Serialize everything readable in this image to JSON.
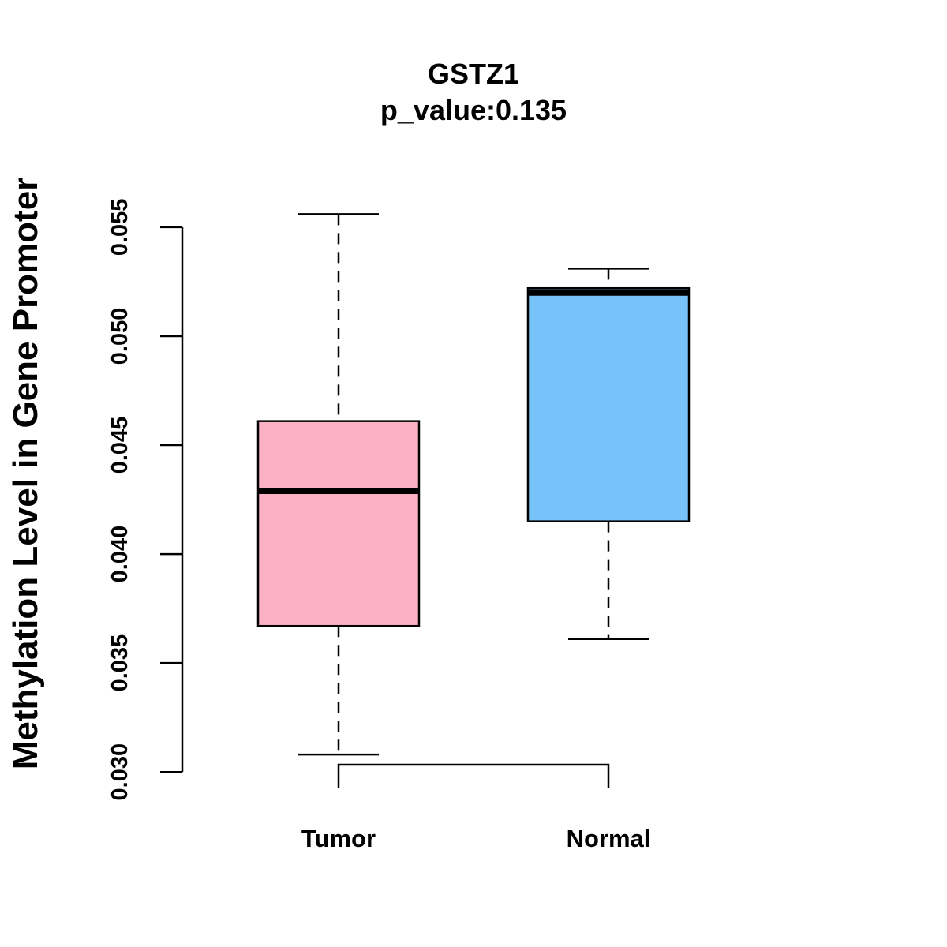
{
  "chart_data": {
    "type": "box",
    "title": "GSTZ1",
    "subtitle": "p_value:0.135",
    "xlabel": "",
    "ylabel": "Methylation Level in Gene Promoter",
    "ylim": [
      0.0295,
      0.0563
    ],
    "yticks": [
      0.03,
      0.035,
      0.04,
      0.045,
      0.05,
      0.055
    ],
    "ytick_labels": [
      "0.030",
      "0.035",
      "0.040",
      "0.045",
      "0.050",
      "0.055"
    ],
    "categories": [
      "Tumor",
      "Normal"
    ],
    "boxes": [
      {
        "name": "Tumor",
        "whisker_low": 0.0308,
        "q1": 0.0367,
        "median": 0.0429,
        "q3": 0.0461,
        "whisker_high": 0.0556,
        "color": "#FDB1C4"
      },
      {
        "name": "Normal",
        "whisker_low": 0.0361,
        "q1": 0.0415,
        "median": 0.052,
        "q3": 0.0522,
        "whisker_high": 0.0531,
        "color": "#77C2F8"
      }
    ],
    "significance_bracket": {
      "from": "Tumor",
      "to": "Normal"
    },
    "grid": false,
    "legend": "none"
  }
}
